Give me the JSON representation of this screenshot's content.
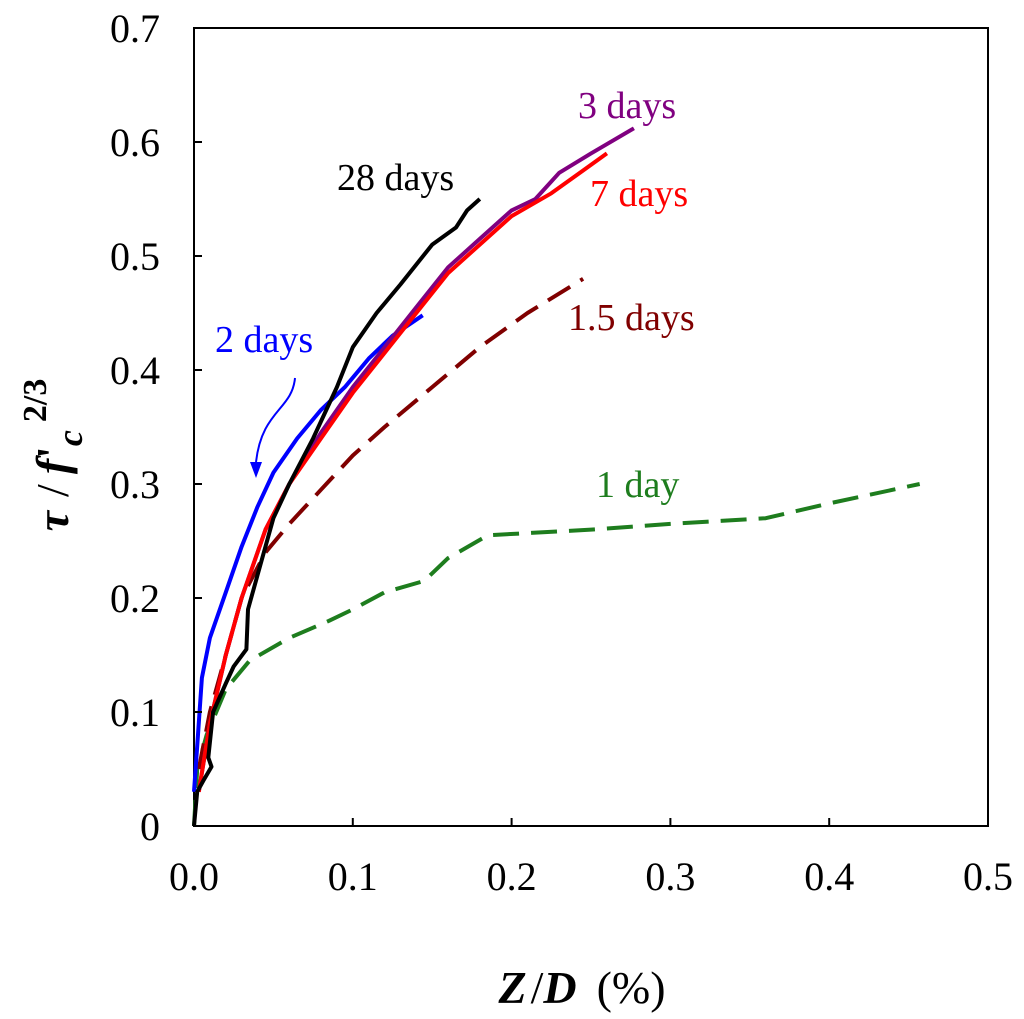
{
  "chart_data": {
    "type": "line",
    "title": "",
    "xlabel": {
      "var": "Z",
      "sep": "/",
      "den": "D",
      "unit": "(%)"
    },
    "ylabel": {
      "tau": "τ",
      "sep": "/",
      "f": "f",
      "prime": "'",
      "sub": "c",
      "exp": "2/3"
    },
    "xlim": [
      0,
      0.5
    ],
    "ylim": [
      0,
      0.7
    ],
    "x_ticks": [
      "0.0",
      "0.1",
      "0.2",
      "0.3",
      "0.4",
      "0.5"
    ],
    "y_ticks": [
      "0",
      "0.1",
      "0.2",
      "0.3",
      "0.4",
      "0.5",
      "0.6",
      "0.7"
    ],
    "grid": false,
    "series": [
      {
        "name": "1 day",
        "color": "#1e7d1e",
        "dashed": true,
        "label": "1 day",
        "points": [
          [
            0,
            0
          ],
          [
            0.002,
            0.05
          ],
          [
            0.008,
            0.08
          ],
          [
            0.02,
            0.12
          ],
          [
            0.035,
            0.145
          ],
          [
            0.06,
            0.165
          ],
          [
            0.085,
            0.18
          ],
          [
            0.1,
            0.19
          ],
          [
            0.12,
            0.205
          ],
          [
            0.145,
            0.215
          ],
          [
            0.16,
            0.235
          ],
          [
            0.185,
            0.255
          ],
          [
            0.25,
            0.26
          ],
          [
            0.3,
            0.265
          ],
          [
            0.36,
            0.27
          ],
          [
            0.4,
            0.283
          ],
          [
            0.457,
            0.3
          ]
        ]
      },
      {
        "name": "1.5 days",
        "color": "#800000",
        "dashed": true,
        "label": "1.5 days",
        "points": [
          [
            0.003,
            0.05
          ],
          [
            0.01,
            0.1
          ],
          [
            0.02,
            0.15
          ],
          [
            0.03,
            0.2
          ],
          [
            0.045,
            0.24
          ],
          [
            0.06,
            0.265
          ],
          [
            0.08,
            0.295
          ],
          [
            0.1,
            0.325
          ],
          [
            0.12,
            0.35
          ],
          [
            0.15,
            0.385
          ],
          [
            0.18,
            0.42
          ],
          [
            0.21,
            0.45
          ],
          [
            0.245,
            0.48
          ]
        ]
      },
      {
        "name": "2 days",
        "color": "#0000ff",
        "dashed": false,
        "label": "2 days",
        "points": [
          [
            0,
            0.03
          ],
          [
            0.002,
            0.07
          ],
          [
            0.005,
            0.13
          ],
          [
            0.01,
            0.165
          ],
          [
            0.02,
            0.205
          ],
          [
            0.03,
            0.245
          ],
          [
            0.04,
            0.28
          ],
          [
            0.05,
            0.31
          ],
          [
            0.065,
            0.34
          ],
          [
            0.08,
            0.365
          ],
          [
            0.095,
            0.385
          ],
          [
            0.11,
            0.41
          ],
          [
            0.125,
            0.43
          ],
          [
            0.144,
            0.448
          ]
        ]
      },
      {
        "name": "3 days",
        "color": "#800080",
        "dashed": false,
        "label": "3 days",
        "points": [
          [
            0.003,
            0.03
          ],
          [
            0.01,
            0.09
          ],
          [
            0.02,
            0.15
          ],
          [
            0.03,
            0.2
          ],
          [
            0.045,
            0.26
          ],
          [
            0.06,
            0.3
          ],
          [
            0.08,
            0.345
          ],
          [
            0.1,
            0.385
          ],
          [
            0.12,
            0.42
          ],
          [
            0.14,
            0.455
          ],
          [
            0.16,
            0.49
          ],
          [
            0.18,
            0.515
          ],
          [
            0.2,
            0.54
          ],
          [
            0.215,
            0.55
          ],
          [
            0.23,
            0.573
          ],
          [
            0.25,
            0.59
          ],
          [
            0.277,
            0.612
          ]
        ]
      },
      {
        "name": "7 days",
        "color": "#ff0000",
        "dashed": false,
        "label": "7 days",
        "points": [
          [
            0.003,
            0.03
          ],
          [
            0.01,
            0.09
          ],
          [
            0.02,
            0.15
          ],
          [
            0.03,
            0.2
          ],
          [
            0.045,
            0.26
          ],
          [
            0.06,
            0.3
          ],
          [
            0.08,
            0.34
          ],
          [
            0.1,
            0.38
          ],
          [
            0.12,
            0.415
          ],
          [
            0.14,
            0.45
          ],
          [
            0.16,
            0.485
          ],
          [
            0.18,
            0.51
          ],
          [
            0.2,
            0.535
          ],
          [
            0.225,
            0.555
          ],
          [
            0.245,
            0.575
          ],
          [
            0.26,
            0.59
          ]
        ]
      },
      {
        "name": "28 days",
        "color": "#000000",
        "dashed": false,
        "label": "28 days",
        "points": [
          [
            0,
            0
          ],
          [
            0.002,
            0.03
          ],
          [
            0.006,
            0.04
          ],
          [
            0.011,
            0.052
          ],
          [
            0.009,
            0.06
          ],
          [
            0.012,
            0.1
          ],
          [
            0.02,
            0.125
          ],
          [
            0.025,
            0.14
          ],
          [
            0.033,
            0.155
          ],
          [
            0.034,
            0.19
          ],
          [
            0.04,
            0.22
          ],
          [
            0.05,
            0.27
          ],
          [
            0.06,
            0.3
          ],
          [
            0.075,
            0.34
          ],
          [
            0.09,
            0.385
          ],
          [
            0.1,
            0.42
          ],
          [
            0.115,
            0.45
          ],
          [
            0.13,
            0.475
          ],
          [
            0.15,
            0.51
          ],
          [
            0.165,
            0.525
          ],
          [
            0.172,
            0.54
          ],
          [
            0.18,
            0.55
          ]
        ]
      }
    ],
    "annotations": [
      {
        "text": "28 days",
        "color": "#000000"
      },
      {
        "text": "3 days",
        "color": "#800080"
      },
      {
        "text": "7 days",
        "color": "#ff0000"
      },
      {
        "text": "1.5 days",
        "color": "#800000"
      },
      {
        "text": "2 days",
        "color": "#0000ff"
      },
      {
        "text": "1 day",
        "color": "#1e7d1e"
      }
    ]
  }
}
